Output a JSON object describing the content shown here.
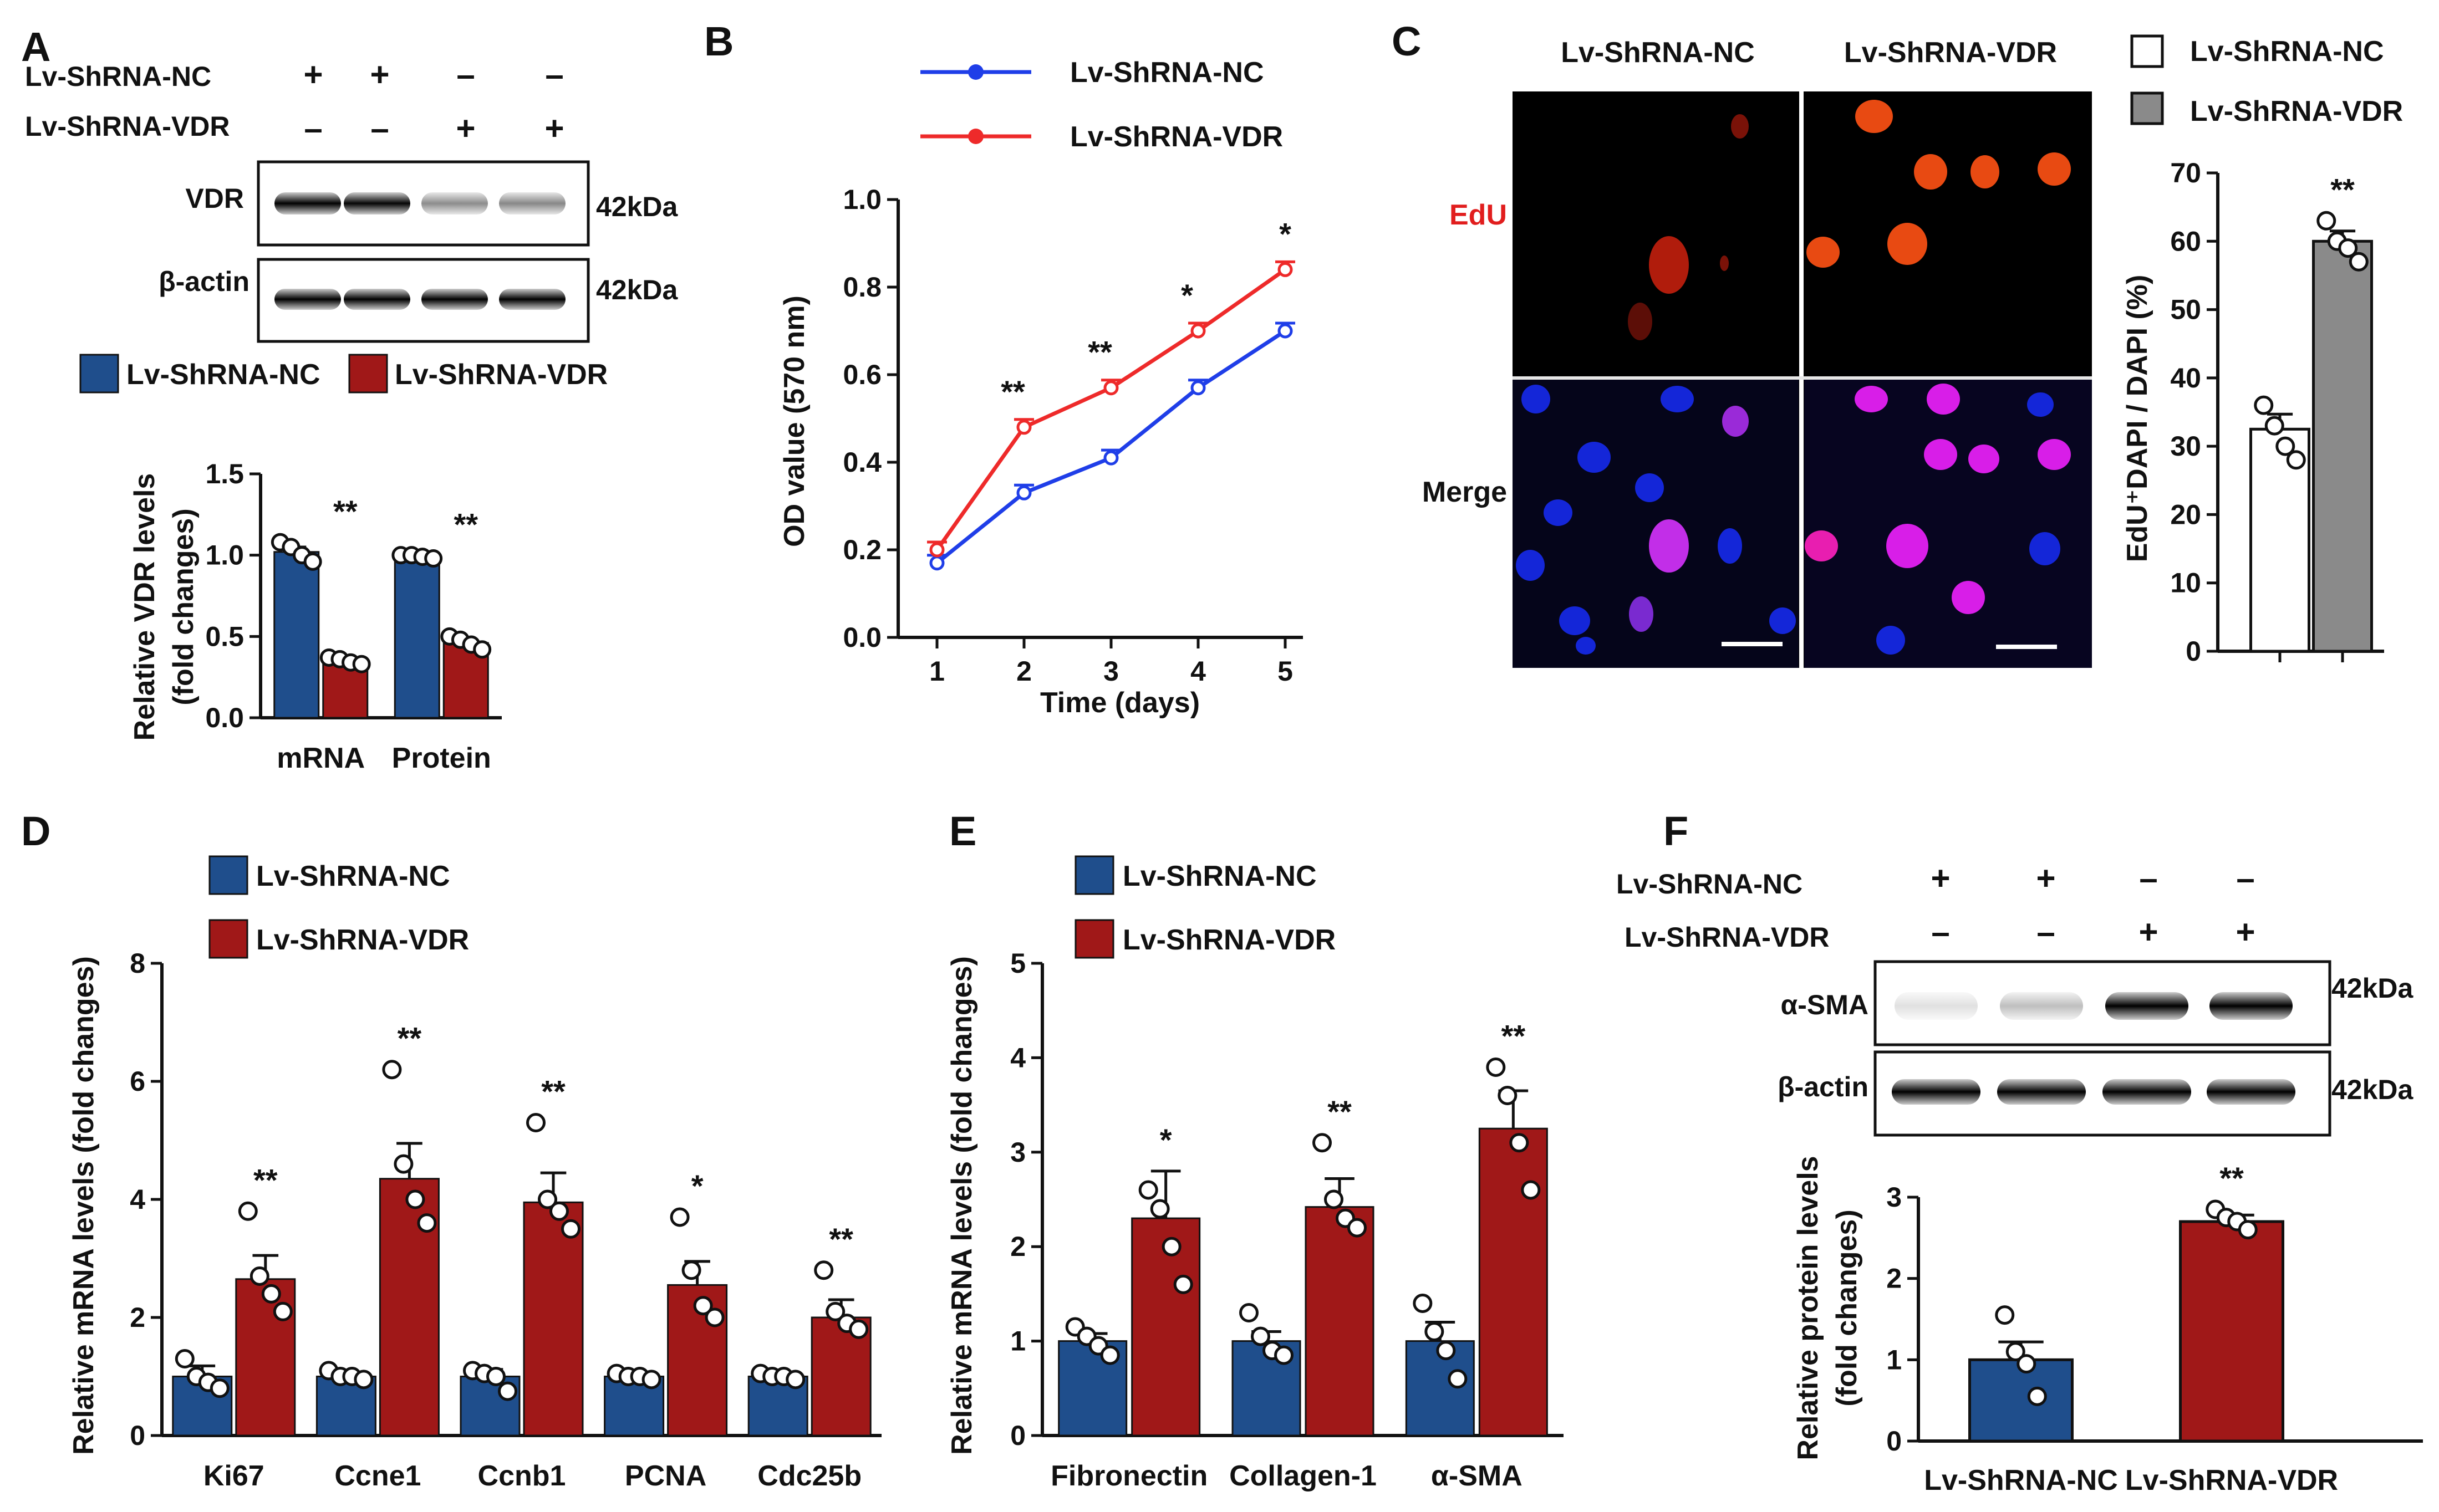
{
  "colors": {
    "nc_blue": "#1f4e8c",
    "vdr_red": "#a01818",
    "line_blue": "#1f3ee8",
    "line_red": "#ee2a2a",
    "gray_bar": "#8a8a8a",
    "edu_label": "#e11e1e"
  },
  "panel_letters": [
    "A",
    "B",
    "C",
    "D",
    "E",
    "F"
  ],
  "groups": {
    "nc": "Lv-ShRNA-NC",
    "vdr": "Lv-ShRNA-VDR"
  },
  "signs": {
    "plus": "+",
    "minus": "–"
  },
  "panelA": {
    "row_labels": [
      "Lv-ShRNA-NC",
      "Lv-ShRNA-VDR"
    ],
    "nc_signs": [
      "+",
      "+",
      "–",
      "–"
    ],
    "vdr_signs": [
      "–",
      "–",
      "+",
      "+"
    ],
    "blot_labels": [
      "VDR",
      "β-actin"
    ],
    "kda": "42kDa",
    "vdr_band_intensity": [
      1.0,
      0.98,
      0.45,
      0.47
    ],
    "actin_band_intensity": [
      1.0,
      1.0,
      1.0,
      1.0
    ]
  },
  "panelC": {
    "col_labels": [
      "Lv-ShRNA-NC",
      "Lv-ShRNA-VDR"
    ],
    "row_labels": [
      "EdU",
      "Merge"
    ]
  },
  "panelF": {
    "row_labels": [
      "Lv-ShRNA-NC",
      "Lv-ShRNA-VDR"
    ],
    "nc_signs": [
      "+",
      "+",
      "–",
      "–"
    ],
    "vdr_signs": [
      "–",
      "–",
      "+",
      "+"
    ],
    "blot_labels": [
      "α-SMA",
      "β-actin"
    ],
    "kda": "42kDa",
    "sma_band_intensity": [
      0.12,
      0.25,
      1.0,
      1.0
    ],
    "actin_band_intensity": [
      1.0,
      1.0,
      1.0,
      1.0
    ]
  },
  "chart_data": [
    {
      "id": "A-bar",
      "type": "bar",
      "categories": [
        "mRNA",
        "Protein"
      ],
      "series": [
        {
          "name": "Lv-ShRNA-NC",
          "values": [
            1.02,
            0.99
          ],
          "err": [
            0.03,
            0.01
          ],
          "points": [
            [
              1.08,
              1.05,
              1.0,
              0.96
            ],
            [
              1.0,
              1.0,
              0.99,
              0.98
            ]
          ]
        },
        {
          "name": "Lv-ShRNA-VDR",
          "values": [
            0.35,
            0.46
          ],
          "err": [
            0.02,
            0.02
          ],
          "points": [
            [
              0.37,
              0.36,
              0.34,
              0.33
            ],
            [
              0.5,
              0.48,
              0.45,
              0.42
            ]
          ]
        }
      ],
      "significance": [
        "**",
        "**"
      ],
      "ylabel_line1": "Relative VDR levels",
      "ylabel_line2": "(fold changes)",
      "ylim": [
        0,
        1.5
      ],
      "yticks": [
        "0.0",
        "0.5",
        "1.0",
        "1.5"
      ]
    },
    {
      "id": "B-line",
      "type": "line",
      "x": [
        1,
        2,
        3,
        4,
        5
      ],
      "xticks": [
        "1",
        "2",
        "3",
        "4",
        "5"
      ],
      "series": [
        {
          "name": "Lv-ShRNA-NC",
          "values": [
            0.17,
            0.33,
            0.41,
            0.57,
            0.7
          ]
        },
        {
          "name": "Lv-ShRNA-VDR",
          "values": [
            0.2,
            0.48,
            0.57,
            0.7,
            0.84
          ]
        }
      ],
      "significance": [
        "",
        "**",
        "**",
        "*",
        "*"
      ],
      "xlabel": "Time (days)",
      "ylabel": "OD value (570 nm)",
      "ylim": [
        0,
        1.0
      ],
      "yticks": [
        "0.0",
        "0.2",
        "0.4",
        "0.6",
        "0.8",
        "1.0"
      ]
    },
    {
      "id": "C-bar",
      "type": "bar",
      "categories": [
        "Lv-ShRNA-NC",
        "Lv-ShRNA-VDR"
      ],
      "values": [
        32.5,
        60.0
      ],
      "err": [
        2.2,
        1.5
      ],
      "points": [
        [
          36,
          33,
          30,
          28
        ],
        [
          63,
          60,
          59,
          57
        ]
      ],
      "significance": [
        "",
        "**"
      ],
      "ylabel": "EdU⁺DAPI / DAPI (%)",
      "ylim": [
        0,
        70
      ],
      "yticks": [
        "0",
        "10",
        "20",
        "30",
        "40",
        "50",
        "60",
        "70"
      ]
    },
    {
      "id": "D-bar",
      "type": "bar",
      "categories": [
        "Ki67",
        "Ccne1",
        "Ccnb1",
        "PCNA",
        "Cdc25b"
      ],
      "series": [
        {
          "name": "Lv-ShRNA-NC",
          "values": [
            1.0,
            1.0,
            1.0,
            1.0,
            1.0
          ],
          "err": [
            0.18,
            0.08,
            0.12,
            0.07,
            0.05
          ],
          "points": [
            [
              1.3,
              1.0,
              0.9,
              0.8
            ],
            [
              1.1,
              1.0,
              1.0,
              0.95
            ],
            [
              1.1,
              1.05,
              1.0,
              0.75
            ],
            [
              1.05,
              1.0,
              1.0,
              0.95
            ],
            [
              1.05,
              1.0,
              1.0,
              0.95
            ]
          ]
        },
        {
          "name": "Lv-ShRNA-VDR",
          "values": [
            2.65,
            4.35,
            3.95,
            2.55,
            2.0
          ],
          "err": [
            0.4,
            0.6,
            0.5,
            0.4,
            0.3
          ],
          "points": [
            [
              3.8,
              2.7,
              2.4,
              2.1
            ],
            [
              6.2,
              4.6,
              4.0,
              3.6
            ],
            [
              5.3,
              4.0,
              3.8,
              3.5
            ],
            [
              3.7,
              2.8,
              2.2,
              2.0
            ],
            [
              2.8,
              2.1,
              1.9,
              1.8
            ]
          ]
        }
      ],
      "significance": [
        "**",
        "**",
        "**",
        "*",
        "**"
      ],
      "ylabel": "Relative mRNA levels (fold changes)",
      "ylim": [
        0,
        8
      ],
      "yticks": [
        "0",
        "2",
        "4",
        "6",
        "8"
      ]
    },
    {
      "id": "E-bar",
      "type": "bar",
      "categories": [
        "Fibronectin",
        "Collagen-1",
        "α-SMA"
      ],
      "series": [
        {
          "name": "Lv-ShRNA-NC",
          "values": [
            1.0,
            1.0,
            1.0
          ],
          "err": [
            0.08,
            0.1,
            0.2
          ],
          "points": [
            [
              1.15,
              1.05,
              0.95,
              0.85
            ],
            [
              1.3,
              1.05,
              0.9,
              0.85
            ],
            [
              1.4,
              1.1,
              0.9,
              0.6
            ]
          ]
        },
        {
          "name": "Lv-ShRNA-VDR",
          "values": [
            2.3,
            2.42,
            3.25
          ],
          "err": [
            0.5,
            0.3,
            0.4
          ],
          "points": [
            [
              2.6,
              2.4,
              2.0,
              1.6
            ],
            [
              3.1,
              2.5,
              2.3,
              2.2
            ],
            [
              3.9,
              3.6,
              3.1,
              2.6
            ]
          ]
        }
      ],
      "significance": [
        "*",
        "**",
        "**"
      ],
      "ylabel": "Relative mRNA levels (fold changes)",
      "ylim": [
        0,
        5
      ],
      "yticks": [
        "0",
        "1",
        "2",
        "3",
        "4",
        "5"
      ]
    },
    {
      "id": "F-bar",
      "type": "bar",
      "categories": [
        "Lv-ShRNA-NC",
        "Lv-ShRNA-VDR"
      ],
      "values": [
        1.0,
        2.7
      ],
      "err": [
        0.22,
        0.08
      ],
      "points": [
        [
          1.55,
          1.1,
          0.95,
          0.55
        ],
        [
          2.85,
          2.75,
          2.7,
          2.6
        ]
      ],
      "significance": [
        "",
        "**"
      ],
      "ylabel_line1": "Relative protein levels",
      "ylabel_line2": "(fold changes)",
      "ylim": [
        0,
        3
      ],
      "yticks": [
        "0",
        "1",
        "2",
        "3"
      ]
    }
  ]
}
